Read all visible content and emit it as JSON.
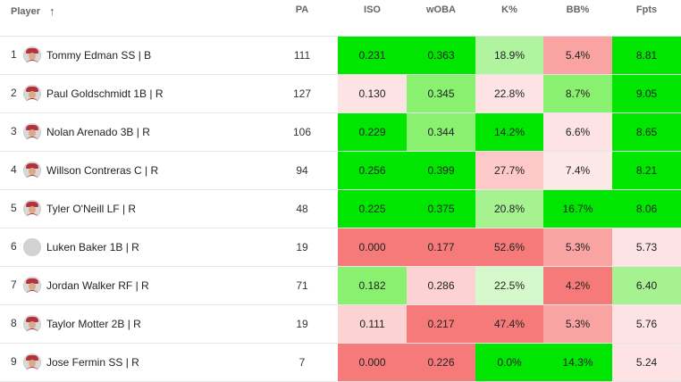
{
  "header": {
    "player": "Player",
    "pa": "PA",
    "iso": "ISO",
    "woba": "wOBA",
    "kpct": "K%",
    "bbpct": "BB%",
    "fpts": "Fpts",
    "sort_icon": "arrow-up-icon",
    "sort_glyph": "↑"
  },
  "rows": [
    {
      "rank": "1",
      "name": "Tommy Edman SS | B",
      "pa": "111",
      "iso": "0.231",
      "woba": "0.363",
      "kpct": "18.9%",
      "bbpct": "5.4%",
      "fpts": "8.81",
      "photo": true,
      "colors": {
        "iso": "#00e600",
        "woba": "#00e600",
        "kpct": "#b0f4a0",
        "bbpct": "#f9a3a3",
        "fpts": "#00e600"
      }
    },
    {
      "rank": "2",
      "name": "Paul Goldschmidt 1B | R",
      "pa": "127",
      "iso": "0.130",
      "woba": "0.345",
      "kpct": "22.8%",
      "bbpct": "8.7%",
      "fpts": "9.05",
      "photo": true,
      "colors": {
        "iso": "#fde3e3",
        "woba": "#8af070",
        "kpct": "#fde3e3",
        "bbpct": "#8af070",
        "fpts": "#00e600"
      }
    },
    {
      "rank": "3",
      "name": "Nolan Arenado 3B | R",
      "pa": "106",
      "iso": "0.229",
      "woba": "0.344",
      "kpct": "14.2%",
      "bbpct": "6.6%",
      "fpts": "8.65",
      "photo": true,
      "colors": {
        "iso": "#00e600",
        "woba": "#8af070",
        "kpct": "#00e600",
        "bbpct": "#fde3e3",
        "fpts": "#00e600"
      }
    },
    {
      "rank": "4",
      "name": "Willson Contreras C | R",
      "pa": "94",
      "iso": "0.256",
      "woba": "0.399",
      "kpct": "27.7%",
      "bbpct": "7.4%",
      "fpts": "8.21",
      "photo": true,
      "colors": {
        "iso": "#00e600",
        "woba": "#00e600",
        "kpct": "#fcc8c8",
        "bbpct": "#fde8e8",
        "fpts": "#00e600"
      }
    },
    {
      "rank": "5",
      "name": "Tyler O'Neill LF | R",
      "pa": "48",
      "iso": "0.225",
      "woba": "0.375",
      "kpct": "20.8%",
      "bbpct": "16.7%",
      "fpts": "8.06",
      "photo": true,
      "colors": {
        "iso": "#00e600",
        "woba": "#00e600",
        "kpct": "#a6f290",
        "bbpct": "#00e600",
        "fpts": "#00e600"
      }
    },
    {
      "rank": "6",
      "name": "Luken Baker 1B | R",
      "pa": "19",
      "iso": "0.000",
      "woba": "0.177",
      "kpct": "52.6%",
      "bbpct": "5.3%",
      "fpts": "5.73",
      "photo": false,
      "colors": {
        "iso": "#f77a7a",
        "woba": "#f77a7a",
        "kpct": "#f77a7a",
        "bbpct": "#f9a3a3",
        "fpts": "#fde3e3"
      }
    },
    {
      "rank": "7",
      "name": "Jordan Walker RF | R",
      "pa": "71",
      "iso": "0.182",
      "woba": "0.286",
      "kpct": "22.5%",
      "bbpct": "4.2%",
      "fpts": "6.40",
      "photo": true,
      "colors": {
        "iso": "#8af070",
        "woba": "#fcd2d2",
        "kpct": "#d6f9cc",
        "bbpct": "#f77a7a",
        "fpts": "#a6f290"
      }
    },
    {
      "rank": "8",
      "name": "Taylor Motter 2B | R",
      "pa": "19",
      "iso": "0.111",
      "woba": "0.217",
      "kpct": "47.4%",
      "bbpct": "5.3%",
      "fpts": "5.76",
      "photo": true,
      "colors": {
        "iso": "#fcd2d2",
        "woba": "#f77a7a",
        "kpct": "#f77a7a",
        "bbpct": "#f9a3a3",
        "fpts": "#fde3e3"
      }
    },
    {
      "rank": "9",
      "name": "Jose Fermin SS | R",
      "pa": "7",
      "iso": "0.000",
      "woba": "0.226",
      "kpct": "0.0%",
      "bbpct": "14.3%",
      "fpts": "5.24",
      "photo": true,
      "colors": {
        "iso": "#f77a7a",
        "woba": "#f77a7a",
        "kpct": "#00e600",
        "bbpct": "#00e600",
        "fpts": "#fde3e3"
      }
    }
  ]
}
